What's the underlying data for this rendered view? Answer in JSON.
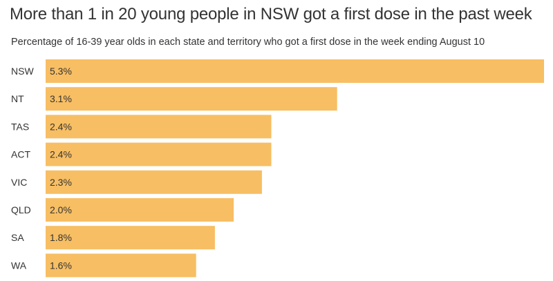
{
  "chart_data": {
    "type": "bar",
    "orientation": "horizontal",
    "title": "More than 1 in 20 young people in NSW got a first dose in the past week",
    "subtitle": "Percentage of 16-39 year olds in each state and territory who got a first dose in the week ending August 10",
    "categories": [
      "NSW",
      "NT",
      "TAS",
      "ACT",
      "VIC",
      "QLD",
      "SA",
      "WA"
    ],
    "values": [
      5.3,
      3.1,
      2.4,
      2.4,
      2.3,
      2.0,
      1.8,
      1.6
    ],
    "value_labels": [
      "5.3%",
      "3.1%",
      "2.4%",
      "2.4%",
      "2.3%",
      "2.0%",
      "1.8%",
      "1.6%"
    ],
    "xlim": [
      0,
      5.3
    ],
    "grid": false,
    "legend": "none",
    "bar_color": "#f7be63",
    "text_color": "#333333"
  }
}
